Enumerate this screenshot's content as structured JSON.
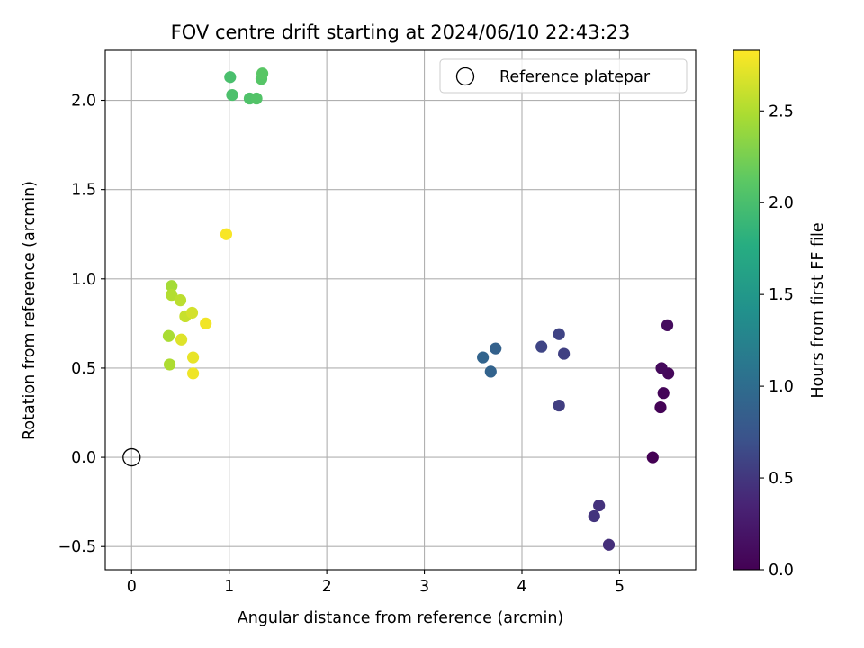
{
  "chart_data": {
    "type": "scatter",
    "title": "FOV centre drift starting at 2024/06/10 22:43:23",
    "xlabel": "Angular distance from reference (arcmin)",
    "ylabel": "Rotation from reference (arcmin)",
    "xlim": [
      -0.27,
      5.78
    ],
    "ylim": [
      -0.63,
      2.28
    ],
    "xticks": [
      0,
      1,
      2,
      3,
      4,
      5
    ],
    "yticks": [
      -0.5,
      0.0,
      0.5,
      1.0,
      1.5,
      2.0
    ],
    "xtick_labels": [
      "0",
      "1",
      "2",
      "3",
      "4",
      "5"
    ],
    "ytick_labels": [
      "−0.5",
      "0.0",
      "0.5",
      "1.0",
      "1.5",
      "2.0"
    ],
    "grid": true,
    "legend": {
      "position": "top-right",
      "entries": [
        "Reference platepar"
      ]
    },
    "colorbar": {
      "label": "Hours from first FF file",
      "range": [
        0.0,
        2.83
      ],
      "colormap": "viridis",
      "ticks": [
        0.0,
        0.5,
        1.0,
        1.5,
        2.0,
        2.5
      ],
      "tick_labels": [
        "0.0",
        "0.5",
        "1.0",
        "1.5",
        "2.0",
        "2.5"
      ]
    },
    "reference_point": {
      "x": 0.0,
      "y": 0.0,
      "name": "Reference platepar"
    },
    "points": [
      {
        "x": 5.34,
        "y": 0.0,
        "hours": 0.0
      },
      {
        "x": 5.42,
        "y": 0.28,
        "hours": 0.02
      },
      {
        "x": 5.45,
        "y": 0.36,
        "hours": 0.04
      },
      {
        "x": 5.5,
        "y": 0.47,
        "hours": 0.06
      },
      {
        "x": 5.43,
        "y": 0.5,
        "hours": 0.09
      },
      {
        "x": 5.49,
        "y": 0.74,
        "hours": 0.11
      },
      {
        "x": 4.89,
        "y": -0.49,
        "hours": 0.44
      },
      {
        "x": 4.79,
        "y": -0.27,
        "hours": 0.46
      },
      {
        "x": 4.74,
        "y": -0.33,
        "hours": 0.48
      },
      {
        "x": 4.38,
        "y": 0.29,
        "hours": 0.55
      },
      {
        "x": 4.43,
        "y": 0.58,
        "hours": 0.57
      },
      {
        "x": 4.38,
        "y": 0.69,
        "hours": 0.59
      },
      {
        "x": 4.2,
        "y": 0.62,
        "hours": 0.61
      },
      {
        "x": 3.73,
        "y": 0.61,
        "hours": 0.87
      },
      {
        "x": 3.68,
        "y": 0.48,
        "hours": 0.89
      },
      {
        "x": 3.6,
        "y": 0.56,
        "hours": 0.91
      },
      {
        "x": 1.01,
        "y": 2.13,
        "hours": 2.0
      },
      {
        "x": 1.03,
        "y": 2.03,
        "hours": 2.02
      },
      {
        "x": 1.21,
        "y": 2.01,
        "hours": 2.04
      },
      {
        "x": 1.28,
        "y": 2.01,
        "hours": 2.06
      },
      {
        "x": 1.33,
        "y": 2.12,
        "hours": 2.08
      },
      {
        "x": 1.34,
        "y": 2.15,
        "hours": 2.1
      },
      {
        "x": 0.41,
        "y": 0.96,
        "hours": 2.45
      },
      {
        "x": 0.38,
        "y": 0.68,
        "hours": 2.47
      },
      {
        "x": 0.39,
        "y": 0.52,
        "hours": 2.49
      },
      {
        "x": 0.41,
        "y": 0.91,
        "hours": 2.51
      },
      {
        "x": 0.5,
        "y": 0.88,
        "hours": 2.55
      },
      {
        "x": 0.55,
        "y": 0.79,
        "hours": 2.6
      },
      {
        "x": 0.62,
        "y": 0.81,
        "hours": 2.65
      },
      {
        "x": 0.51,
        "y": 0.66,
        "hours": 2.7
      },
      {
        "x": 0.63,
        "y": 0.56,
        "hours": 2.74
      },
      {
        "x": 0.63,
        "y": 0.47,
        "hours": 2.77
      },
      {
        "x": 0.76,
        "y": 0.75,
        "hours": 2.78
      },
      {
        "x": 0.97,
        "y": 1.25,
        "hours": 2.81
      }
    ]
  }
}
